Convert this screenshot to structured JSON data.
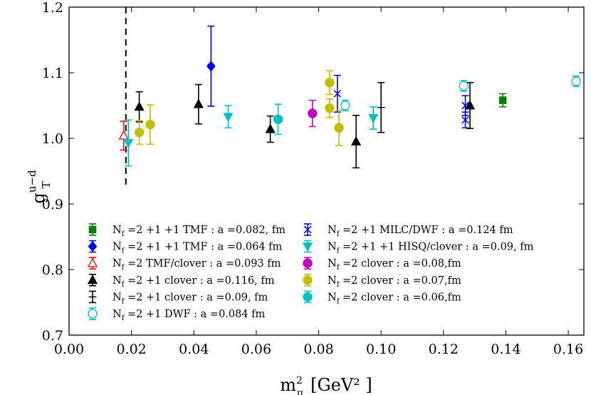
{
  "chart_data": {
    "type": "scatter",
    "xlabel": {
      "base": "m",
      "sub": "π",
      "sup": "2",
      "unit": "[GeV² ]"
    },
    "ylabel": {
      "base": "g",
      "sub": "T",
      "sup": "u−d"
    },
    "xlim": [
      0.0,
      0.165
    ],
    "ylim": [
      0.7,
      1.2
    ],
    "xticks": [
      "0.00",
      "0.02",
      "0.04",
      "0.06",
      "0.08",
      "0.10",
      "0.12",
      "0.14",
      "0.16"
    ],
    "xtick_values": [
      0.0,
      0.02,
      0.04,
      0.06,
      0.08,
      0.1,
      0.12,
      0.14,
      0.16
    ],
    "yticks": [
      "0.7",
      "0.8",
      "0.9",
      "1.0",
      "1.1",
      "1.2"
    ],
    "ytick_values": [
      0.7,
      0.8,
      0.9,
      1.0,
      1.1,
      1.2
    ],
    "vline": {
      "x": 0.0182,
      "style": "dashed",
      "ymin": 0.928
    },
    "series": [
      {
        "key": "s1",
        "nf": "2 +1 +1",
        "name": "TMF",
        "desc": "a =0.082, fm",
        "color": "#008000",
        "marker": "square",
        "filled": true,
        "points": [
          {
            "x": 0.139,
            "y": 1.058,
            "err": 0.01
          }
        ]
      },
      {
        "key": "s2",
        "nf": "2 +1 +1",
        "name": "TMF",
        "desc": "a =0.064 fm",
        "color": "#0000ff",
        "marker": "diamond",
        "filled": true,
        "points": [
          {
            "x": 0.0455,
            "y": 1.11,
            "err": 0.061
          }
        ]
      },
      {
        "key": "s3",
        "nf": "2",
        "name": "TMF/clover",
        "desc": "a =0.093 fm",
        "color": "#ff0000",
        "marker": "triangle-up",
        "filled": false,
        "points": [
          {
            "x": 0.0175,
            "y": 1.004,
            "err": 0.022
          }
        ]
      },
      {
        "key": "s4",
        "nf": "2 +1",
        "name": "clover",
        "desc": "a =0.116, fm",
        "color": "#000000",
        "marker": "triangle-up",
        "filled": true,
        "points": [
          {
            "x": 0.0225,
            "y": 1.048,
            "err": 0.023
          },
          {
            "x": 0.0415,
            "y": 1.052,
            "err": 0.03
          },
          {
            "x": 0.0645,
            "y": 1.014,
            "err": 0.02
          },
          {
            "x": 0.092,
            "y": 0.995,
            "err": 0.04
          },
          {
            "x": 0.1285,
            "y": 1.05,
            "err": 0.035
          }
        ]
      },
      {
        "key": "s5",
        "nf": "2 +1",
        "name": "clover",
        "desc": "a =0.09,  fm",
        "color": "#000000",
        "marker": "plus",
        "filled": false,
        "points": [
          {
            "x": 0.1,
            "y": 1.047,
            "err": 0.038
          }
        ]
      },
      {
        "key": "s6",
        "nf": "2 +1",
        "name": "DWF",
        "desc": "a =0.084 fm",
        "color": "#00bfbf",
        "marker": "circle",
        "filled": false,
        "points": [
          {
            "x": 0.0885,
            "y": 1.05,
            "err": 0.008
          },
          {
            "x": 0.1265,
            "y": 1.08,
            "err": 0.008
          },
          {
            "x": 0.1625,
            "y": 1.087,
            "err": 0.008
          }
        ]
      },
      {
        "key": "s7",
        "nf": "2 +1",
        "name": "MILC/DWF",
        "desc": "a =0.124 fm",
        "color": "#0000ff",
        "marker": "x",
        "filled": false,
        "points": [
          {
            "x": 0.086,
            "y": 1.068,
            "err": 0.028
          },
          {
            "x": 0.127,
            "y": 1.05,
            "err": 0.015
          },
          {
            "x": 0.127,
            "y": 1.028,
            "err": 0.012
          }
        ]
      },
      {
        "key": "s8",
        "nf": "2 +1 +1",
        "name": "HISQ/clover",
        "desc": "a =0.09,  fm",
        "color": "#00bfbf",
        "marker": "triangle-down",
        "filled": true,
        "points": [
          {
            "x": 0.019,
            "y": 0.993,
            "err": 0.035
          },
          {
            "x": 0.051,
            "y": 1.033,
            "err": 0.017
          },
          {
            "x": 0.0975,
            "y": 1.031,
            "err": 0.017
          }
        ]
      },
      {
        "key": "s9",
        "nf": "2",
        "name": "clover",
        "desc": "a =0.08,fm",
        "color": "#bf00bf",
        "marker": "circle",
        "filled": true,
        "points": [
          {
            "x": 0.078,
            "y": 1.038,
            "err": 0.02
          }
        ]
      },
      {
        "key": "s10",
        "nf": "2",
        "name": "clover",
        "desc": "a =0.07,fm",
        "color": "#bfbf00",
        "marker": "circle",
        "filled": true,
        "points": [
          {
            "x": 0.0225,
            "y": 1.009,
            "err": 0.018
          },
          {
            "x": 0.026,
            "y": 1.021,
            "err": 0.03
          },
          {
            "x": 0.0835,
            "y": 1.085,
            "err": 0.018
          },
          {
            "x": 0.0835,
            "y": 1.046,
            "err": 0.014
          },
          {
            "x": 0.0865,
            "y": 1.016,
            "err": 0.027
          }
        ]
      },
      {
        "key": "s11",
        "nf": "2",
        "name": "clover",
        "desc": "a =0.06,fm",
        "color": "#00bfbf",
        "marker": "circle",
        "filled": true,
        "points": [
          {
            "x": 0.067,
            "y": 1.029,
            "err": 0.023
          }
        ]
      }
    ],
    "legend_left": [
      "s1",
      "s2",
      "s3",
      "s4",
      "s5",
      "s6"
    ],
    "legend_right": [
      "s7",
      "s8",
      "s9",
      "s10",
      "s11"
    ],
    "legend_prefix": "N",
    "legend_prefix_sub": "f",
    "legend_location": "lower-center"
  }
}
